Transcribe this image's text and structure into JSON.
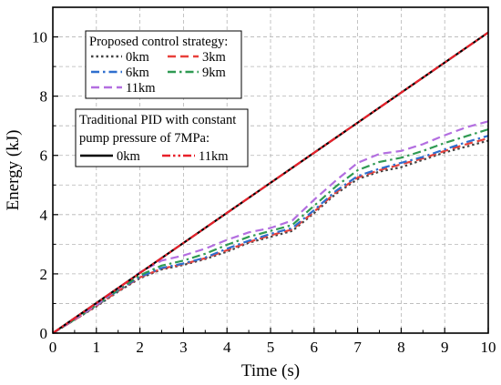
{
  "chart_data": {
    "type": "line",
    "title": "",
    "xlabel": "Time (s)",
    "ylabel": "Energy (kJ)",
    "xlim": [
      0,
      10
    ],
    "ylim": [
      0,
      11
    ],
    "xticks": [
      0,
      1,
      2,
      3,
      4,
      5,
      6,
      7,
      8,
      9,
      10
    ],
    "yticks": [
      0,
      2,
      4,
      6,
      8,
      10
    ],
    "grid": true,
    "legend_position": "top-left",
    "legend_groups": [
      {
        "title": "Proposed control strategy:",
        "series": [
          "0km",
          "3km",
          "6km",
          "9km",
          "11km"
        ]
      },
      {
        "title_lines": [
          "Traditional PID with constant",
          "pump pressure of 7MPa:"
        ],
        "series": [
          "0km ",
          "11km "
        ]
      }
    ],
    "series": [
      {
        "name": "0km",
        "group": "proposed",
        "color": "#444444",
        "dash": "dot",
        "x": [
          0,
          0.5,
          1,
          1.5,
          2,
          2.5,
          3,
          3.5,
          4,
          4.5,
          5,
          5.5,
          6,
          6.5,
          7,
          7.5,
          8,
          8.5,
          9,
          9.5,
          10
        ],
        "y": [
          0,
          0.45,
          0.9,
          1.4,
          1.85,
          2.15,
          2.3,
          2.5,
          2.75,
          3.05,
          3.25,
          3.45,
          4.05,
          4.7,
          5.2,
          5.45,
          5.6,
          5.85,
          6.1,
          6.3,
          6.5
        ]
      },
      {
        "name": "3km",
        "group": "proposed",
        "color": "#e8403a",
        "dash": "dash",
        "x": [
          0,
          0.5,
          1,
          1.5,
          2,
          2.5,
          3,
          3.5,
          4,
          4.5,
          5,
          5.5,
          6,
          6.5,
          7,
          7.5,
          8,
          8.5,
          9,
          9.5,
          10
        ],
        "y": [
          0,
          0.45,
          0.92,
          1.42,
          1.88,
          2.18,
          2.33,
          2.53,
          2.8,
          3.08,
          3.3,
          3.5,
          4.1,
          4.75,
          5.25,
          5.5,
          5.7,
          5.9,
          6.15,
          6.38,
          6.58
        ]
      },
      {
        "name": "6km",
        "group": "proposed",
        "color": "#2f6fce",
        "dash": "dashdot",
        "x": [
          0,
          0.5,
          1,
          1.5,
          2,
          2.5,
          3,
          3.5,
          4,
          4.5,
          5,
          5.5,
          6,
          6.5,
          7,
          7.5,
          8,
          8.5,
          9,
          9.5,
          10
        ],
        "y": [
          0,
          0.46,
          0.93,
          1.44,
          1.9,
          2.2,
          2.35,
          2.55,
          2.85,
          3.12,
          3.35,
          3.55,
          4.15,
          4.8,
          5.3,
          5.55,
          5.75,
          5.95,
          6.2,
          6.45,
          6.66
        ]
      },
      {
        "name": "9km",
        "group": "proposed",
        "color": "#2f9a52",
        "dash": "dashdot",
        "x": [
          0,
          0.5,
          1,
          1.5,
          2,
          2.5,
          3,
          3.5,
          4,
          4.5,
          5,
          5.5,
          6,
          6.5,
          7,
          7.5,
          8,
          8.5,
          9,
          9.5,
          10
        ],
        "y": [
          0,
          0.46,
          0.94,
          1.46,
          1.95,
          2.28,
          2.45,
          2.68,
          2.98,
          3.25,
          3.45,
          3.65,
          4.3,
          4.95,
          5.5,
          5.78,
          5.92,
          6.15,
          6.42,
          6.65,
          6.88
        ]
      },
      {
        "name": "11km",
        "group": "proposed",
        "color": "#b36ee0",
        "dash": "dash",
        "x": [
          0,
          0.5,
          1,
          1.5,
          2,
          2.5,
          3,
          3.5,
          4,
          4.5,
          5,
          5.5,
          6,
          6.5,
          7,
          7.5,
          8,
          8.5,
          9,
          9.5,
          10
        ],
        "y": [
          0,
          0.47,
          0.95,
          1.5,
          2.05,
          2.45,
          2.62,
          2.85,
          3.15,
          3.4,
          3.55,
          3.8,
          4.5,
          5.15,
          5.75,
          6.05,
          6.15,
          6.38,
          6.68,
          6.95,
          7.15
        ]
      },
      {
        "name": "0km ",
        "group": "traditional",
        "color": "#000000",
        "dash": "solid",
        "x": [
          0,
          10
        ],
        "y": [
          0,
          10.15
        ]
      },
      {
        "name": "11km ",
        "group": "traditional",
        "color": "#e8202a",
        "dash": "dashdotdot",
        "x": [
          0,
          10
        ],
        "y": [
          0,
          10.15
        ]
      }
    ]
  }
}
